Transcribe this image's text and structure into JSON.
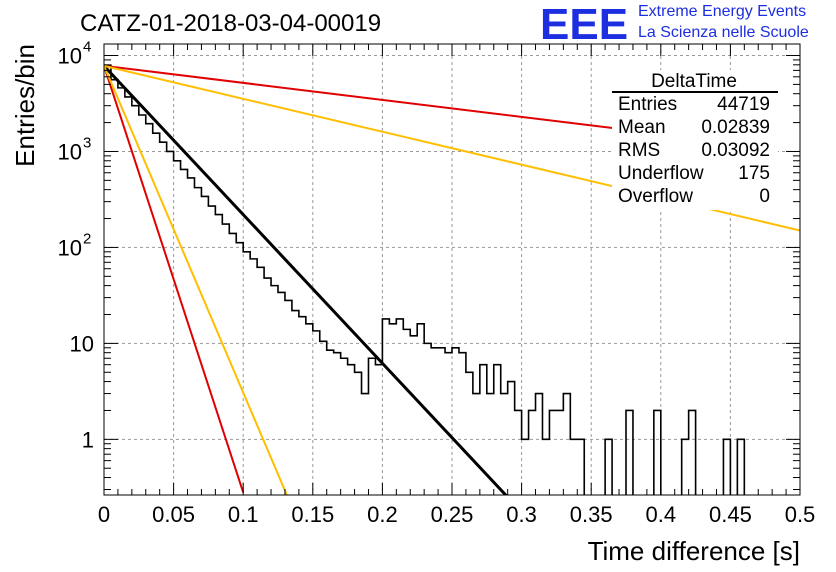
{
  "header": {
    "title": "CATZ-01-2018-03-04-00019",
    "logo_text": "EEE",
    "logo_line1": "Extreme Energy Events",
    "logo_line2": "La Scienza nelle Scuole",
    "logo_color": "#1d2ee0"
  },
  "stats_box": {
    "title": "DeltaTime",
    "rows": [
      {
        "label": "Entries",
        "value": "44719"
      },
      {
        "label": "Mean",
        "value": "0.02839"
      },
      {
        "label": "RMS",
        "value": "0.03092"
      },
      {
        "label": "Underflow",
        "value": "175"
      },
      {
        "label": "Overflow",
        "value": "0"
      }
    ]
  },
  "chart_data": {
    "type": "line",
    "title": "CATZ-01-2018-03-04-00019",
    "xlabel": "Time difference [s]",
    "ylabel": "Entries/bin",
    "xlim": [
      0,
      0.5
    ],
    "ylim_log10": [
      -0.58,
      4.12
    ],
    "yscale": "log",
    "grid": true,
    "x_ticks": [
      "0",
      "0.05",
      "0.1",
      "0.15",
      "0.2",
      "0.25",
      "0.3",
      "0.35",
      "0.4",
      "0.45",
      "0.5"
    ],
    "y_ticks": [
      {
        "value": 1,
        "label": "1"
      },
      {
        "value": 10,
        "label": "10"
      },
      {
        "value": 100,
        "label": "10",
        "exp": "2"
      },
      {
        "value": 1000,
        "label": "10",
        "exp": "3"
      },
      {
        "value": 10000,
        "label": "10",
        "exp": "4"
      }
    ],
    "histogram": {
      "name": "DeltaTime",
      "color": "#000000",
      "bin_width": 0.005,
      "values": [
        7900,
        5600,
        4600,
        3700,
        3000,
        2400,
        1950,
        1550,
        1250,
        1000,
        800,
        650,
        530,
        420,
        340,
        270,
        220,
        175,
        140,
        112,
        90,
        76,
        62,
        48,
        40,
        34,
        28,
        22,
        19,
        16,
        13.5,
        10.5,
        8.5,
        8,
        7,
        6,
        5,
        3,
        7,
        6,
        4.5,
        3.5,
        2.5,
        1,
        1,
        0,
        0,
        0,
        1,
        0,
        0,
        1,
        1,
        0,
        0,
        0,
        0,
        0,
        1,
        0,
        0,
        0,
        0,
        0,
        0,
        0,
        0,
        0,
        0,
        0,
        0,
        0,
        0,
        0,
        0,
        0,
        0,
        0,
        0,
        0,
        0,
        0,
        0,
        0,
        0,
        0,
        0,
        0,
        0,
        0,
        0,
        0,
        0,
        0,
        0,
        0,
        0,
        0,
        0,
        0
      ]
    },
    "hist_values_extra": {
      "x_from": 0.2,
      "values": [
        18,
        16,
        18,
        14,
        12,
        16,
        10,
        9,
        9,
        8,
        9,
        8,
        5,
        3,
        6,
        3,
        6,
        3,
        4,
        2,
        1,
        2,
        3,
        1,
        2,
        2,
        3,
        1,
        1,
        0,
        0,
        0,
        1,
        0,
        0,
        2,
        0,
        0,
        0,
        2,
        0,
        0,
        0,
        1,
        2,
        0,
        0,
        0,
        0,
        1,
        0,
        1,
        0,
        0,
        0,
        0,
        0,
        0,
        0,
        0,
        0,
        0,
        0,
        0,
        0,
        0,
        0,
        0,
        0,
        0,
        0,
        0,
        0,
        0,
        0,
        0,
        0,
        0,
        0,
        0
      ]
    },
    "fits": [
      {
        "color": "#000000",
        "x": [
          0,
          0.29
        ],
        "y": [
          7800,
          0.25
        ]
      },
      {
        "color": "#e00000",
        "x": [
          0,
          0.48
        ],
        "y": [
          7800,
          1100
        ]
      },
      {
        "color": "#ffbf00",
        "x": [
          0,
          0.5
        ],
        "y": [
          7800,
          150
        ]
      },
      {
        "color": "#e00000",
        "x": [
          0,
          0.1
        ],
        "y": [
          7800,
          0.28
        ]
      },
      {
        "color": "#ffbf00",
        "x": [
          0,
          0.132
        ],
        "y": [
          7800,
          0.25
        ]
      }
    ]
  }
}
